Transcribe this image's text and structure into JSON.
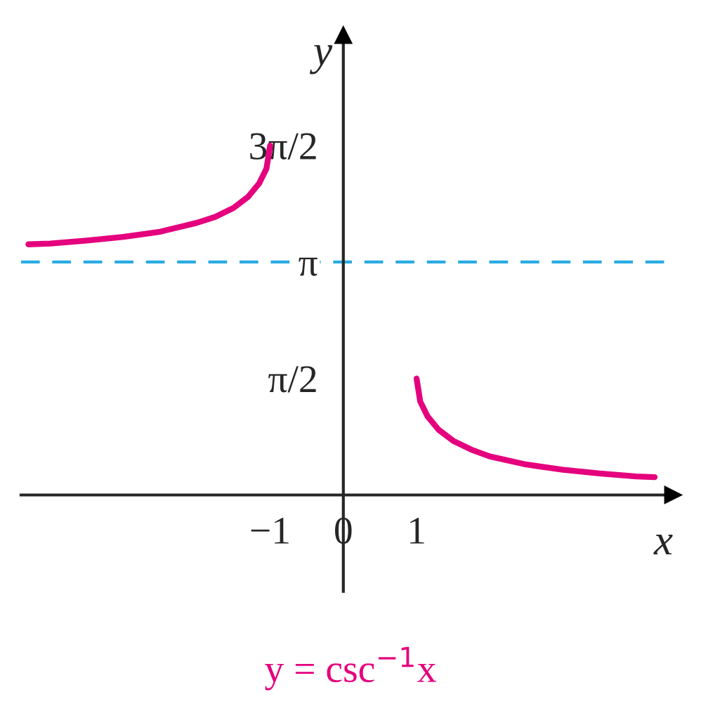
{
  "chart_data": {
    "type": "line",
    "title": "y = csc$^{−1}$x",
    "xlabel": "x",
    "ylabel": "y",
    "series": [
      {
        "color": "#e5007d",
        "x": [
          -4.3,
          -4,
          -3.5,
          -3,
          -2.5,
          -2,
          -1.75,
          -1.5,
          -1.3,
          -1.15,
          -1.05,
          -1
        ],
        "values": [
          3.38,
          3.39,
          3.43,
          3.48,
          3.55,
          3.67,
          3.75,
          3.87,
          4.02,
          4.2,
          4.4,
          4.71
        ]
      },
      {
        "color": "#e5007d",
        "x": [
          1,
          1.05,
          1.15,
          1.3,
          1.5,
          1.75,
          2,
          2.5,
          3,
          3.5,
          4,
          4.25
        ],
        "values": [
          1.57,
          1.26,
          1.06,
          0.88,
          0.73,
          0.61,
          0.52,
          0.41,
          0.34,
          0.29,
          0.25,
          0.24
        ]
      }
    ],
    "xlim": [
      -4.4,
      4.5
    ],
    "ylim": [
      -1.3,
      6.2
    ],
    "xticks": [
      {
        "value": -1,
        "label": "−1"
      },
      0,
      {
        "value": 1,
        "label": "1"
      }
    ],
    "yticks": [
      {
        "value": 1.5708,
        "label": "π/2"
      },
      {
        "value": 3.1416,
        "label": "π"
      },
      {
        "value": 4.7124,
        "label": "3π/2"
      }
    ],
    "ref_lines": [
      {
        "axis": "y",
        "value": 3.1416,
        "color": "#29abe2",
        "line_style": "dashed"
      }
    ],
    "grid": false,
    "marker": "none",
    "line_style": "solid"
  }
}
